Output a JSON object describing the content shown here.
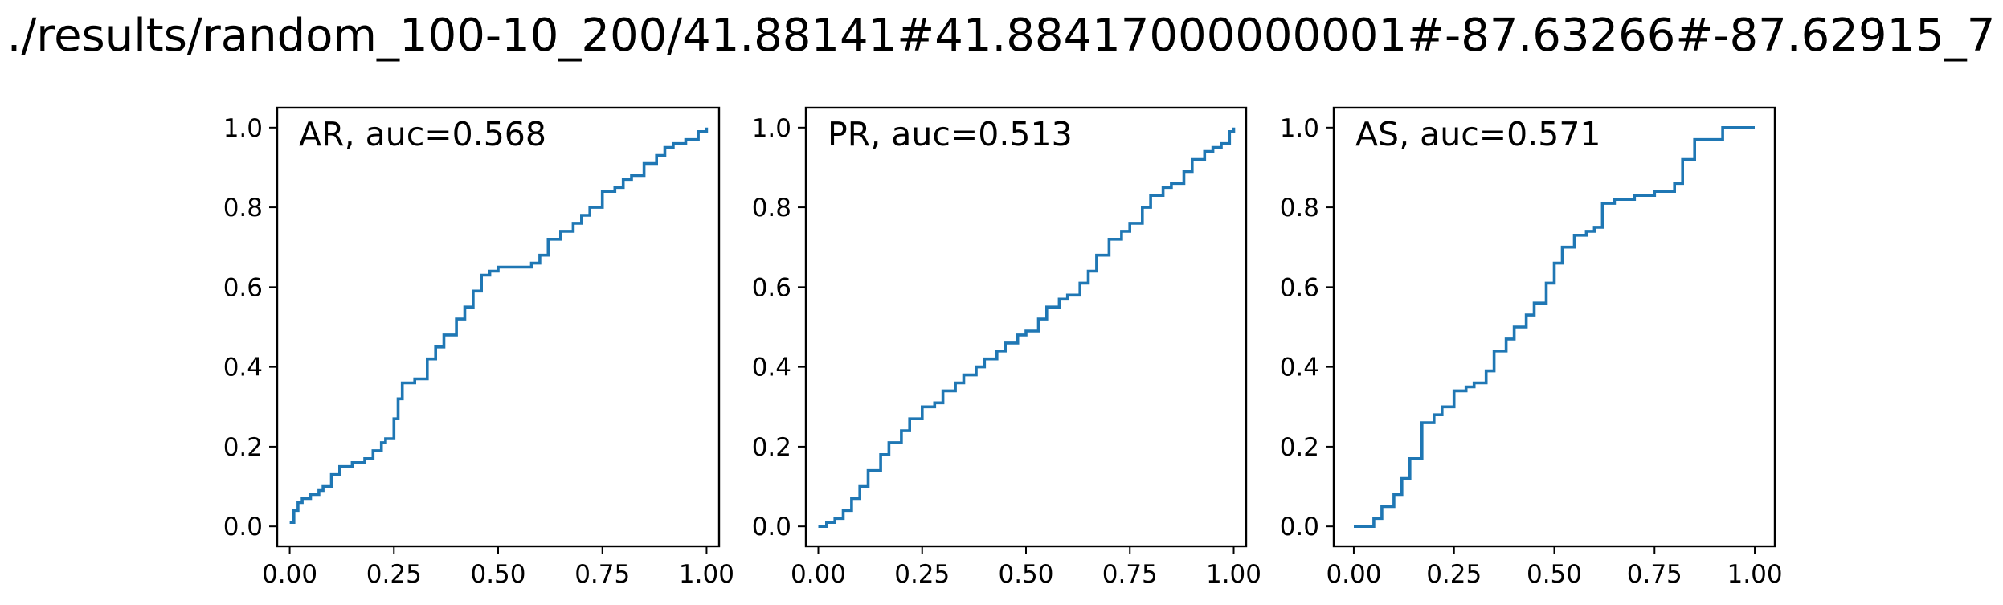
{
  "figure": {
    "title": "./results/random_100-10_200/41.88141#41.88417000000001#-87.63266#-87.62915_7"
  },
  "chart_data": [
    {
      "type": "line",
      "title": "AR, auc=0.568",
      "xlim": [
        -0.03,
        1.03
      ],
      "ylim": [
        -0.05,
        1.05
      ],
      "xticks": [
        "0.00",
        "0.25",
        "0.50",
        "0.75",
        "1.00"
      ],
      "yticks": [
        "0.0",
        "0.2",
        "0.4",
        "0.6",
        "0.8",
        "1.0"
      ],
      "grid": false,
      "line_color": "#1f77b4",
      "series": [
        {
          "x": [
            0.0,
            0.01,
            0.02,
            0.03,
            0.05,
            0.07,
            0.08,
            0.1,
            0.12,
            0.15,
            0.18,
            0.2,
            0.22,
            0.23,
            0.25,
            0.26,
            0.27,
            0.3,
            0.33,
            0.35,
            0.37,
            0.4,
            0.42,
            0.44,
            0.46,
            0.48,
            0.5,
            0.52,
            0.55,
            0.58,
            0.6,
            0.62,
            0.65,
            0.68,
            0.7,
            0.72,
            0.75,
            0.78,
            0.8,
            0.82,
            0.85,
            0.88,
            0.9,
            0.92,
            0.95,
            0.97,
            0.98,
            0.99,
            1.0
          ],
          "y": [
            0.01,
            0.04,
            0.06,
            0.07,
            0.08,
            0.09,
            0.1,
            0.13,
            0.15,
            0.16,
            0.17,
            0.19,
            0.21,
            0.22,
            0.27,
            0.32,
            0.36,
            0.37,
            0.42,
            0.45,
            0.48,
            0.52,
            0.55,
            0.59,
            0.63,
            0.64,
            0.65,
            0.65,
            0.65,
            0.66,
            0.68,
            0.72,
            0.74,
            0.76,
            0.78,
            0.8,
            0.84,
            0.85,
            0.87,
            0.88,
            0.91,
            0.93,
            0.95,
            0.96,
            0.97,
            0.97,
            0.99,
            0.99,
            1.0
          ]
        }
      ]
    },
    {
      "type": "line",
      "title": "PR, auc=0.513",
      "xlim": [
        -0.03,
        1.03
      ],
      "ylim": [
        -0.05,
        1.05
      ],
      "xticks": [
        "0.00",
        "0.25",
        "0.50",
        "0.75",
        "1.00"
      ],
      "yticks": [
        "0.0",
        "0.2",
        "0.4",
        "0.6",
        "0.8",
        "1.0"
      ],
      "grid": false,
      "line_color": "#1f77b4",
      "series": [
        {
          "x": [
            0.0,
            0.02,
            0.04,
            0.06,
            0.08,
            0.1,
            0.12,
            0.15,
            0.17,
            0.2,
            0.22,
            0.25,
            0.28,
            0.3,
            0.33,
            0.35,
            0.38,
            0.4,
            0.43,
            0.45,
            0.48,
            0.5,
            0.53,
            0.55,
            0.58,
            0.6,
            0.63,
            0.65,
            0.67,
            0.7,
            0.73,
            0.75,
            0.78,
            0.8,
            0.83,
            0.85,
            0.88,
            0.9,
            0.93,
            0.95,
            0.97,
            0.99,
            1.0
          ],
          "y": [
            0.0,
            0.01,
            0.02,
            0.04,
            0.07,
            0.1,
            0.14,
            0.18,
            0.21,
            0.24,
            0.27,
            0.3,
            0.31,
            0.34,
            0.36,
            0.38,
            0.4,
            0.42,
            0.44,
            0.46,
            0.48,
            0.49,
            0.52,
            0.55,
            0.57,
            0.58,
            0.61,
            0.64,
            0.68,
            0.72,
            0.74,
            0.76,
            0.8,
            0.83,
            0.85,
            0.86,
            0.89,
            0.92,
            0.94,
            0.95,
            0.96,
            0.99,
            1.0
          ]
        }
      ]
    },
    {
      "type": "line",
      "title": "AS, auc=0.571",
      "xlim": [
        -0.05,
        1.05
      ],
      "ylim": [
        -0.05,
        1.05
      ],
      "xticks": [
        "0.00",
        "0.25",
        "0.50",
        "0.75",
        "1.00"
      ],
      "yticks": [
        "0.0",
        "0.2",
        "0.4",
        "0.6",
        "0.8",
        "1.0"
      ],
      "grid": false,
      "line_color": "#1f77b4",
      "series": [
        {
          "x": [
            0.0,
            0.05,
            0.07,
            0.1,
            0.12,
            0.14,
            0.17,
            0.2,
            0.22,
            0.25,
            0.28,
            0.3,
            0.33,
            0.35,
            0.38,
            0.4,
            0.43,
            0.45,
            0.48,
            0.5,
            0.52,
            0.55,
            0.58,
            0.6,
            0.62,
            0.65,
            0.7,
            0.75,
            0.8,
            0.82,
            0.85,
            0.9,
            0.92,
            1.0
          ],
          "y": [
            0.0,
            0.02,
            0.05,
            0.08,
            0.12,
            0.17,
            0.26,
            0.28,
            0.3,
            0.34,
            0.35,
            0.36,
            0.39,
            0.44,
            0.47,
            0.5,
            0.53,
            0.56,
            0.61,
            0.66,
            0.7,
            0.73,
            0.74,
            0.75,
            0.81,
            0.82,
            0.83,
            0.84,
            0.86,
            0.92,
            0.97,
            0.97,
            1.0,
            1.0
          ]
        }
      ]
    }
  ]
}
